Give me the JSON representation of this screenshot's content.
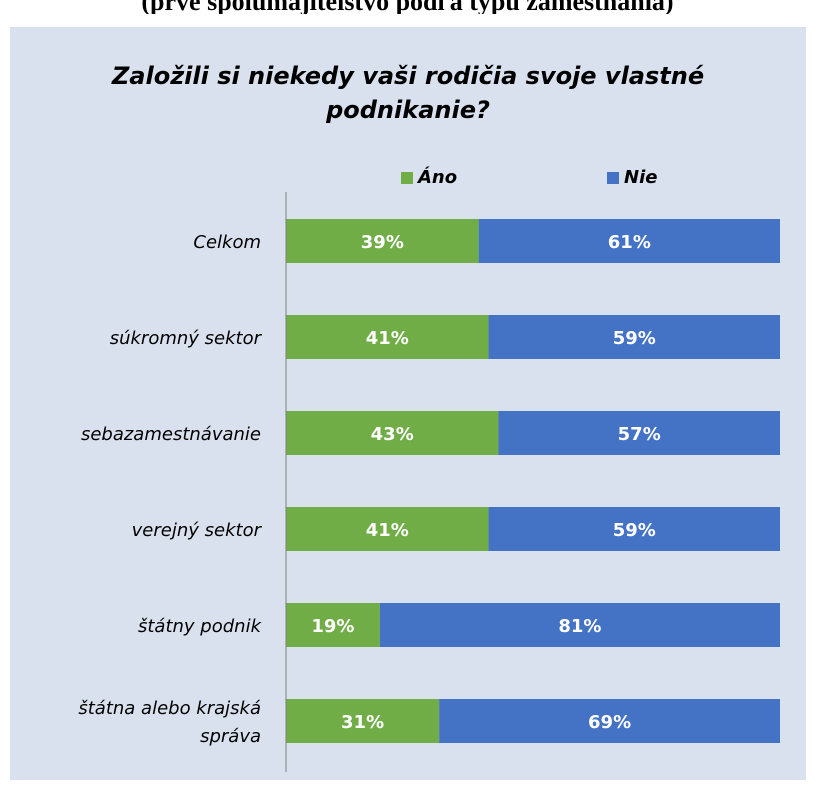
{
  "page": {
    "top_caption": "(prvé spolumajitelstvo podľa typu zamestnania)"
  },
  "colors": {
    "yes": "#70ad47",
    "no": "#4472c4",
    "panel": "#d9e1ee",
    "axis": "#7f7f7f"
  },
  "chart_data": {
    "type": "bar",
    "orientation": "horizontal",
    "stacked": "percent",
    "title_lines": [
      "Založili si niekedy vaši rodičia svoje vlastné",
      "podnikanie?"
    ],
    "categories": [
      "Celkom",
      "súkromný sektor",
      "sebazamestnávanie",
      "verejný sektor",
      "štátny  podnik",
      "štátna alebo krajská správa"
    ],
    "category_lines": [
      [
        "Celkom"
      ],
      [
        "súkromný sektor"
      ],
      [
        "sebazamestnávanie"
      ],
      [
        "verejný sektor"
      ],
      [
        "štátny  podnik"
      ],
      [
        "štátna alebo krajská",
        "správa"
      ]
    ],
    "series": [
      {
        "name": "Áno",
        "color": "#70ad47",
        "values": [
          39,
          41,
          43,
          41,
          19,
          31
        ],
        "labels": [
          "39%",
          "41%",
          "43%",
          "41%",
          "19%",
          "31%"
        ]
      },
      {
        "name": "Nie",
        "color": "#4472c4",
        "values": [
          61,
          59,
          57,
          59,
          81,
          69
        ],
        "labels": [
          "61%",
          "59%",
          "57%",
          "59%",
          "81%",
          "69%"
        ]
      }
    ],
    "xlim": [
      0,
      100
    ],
    "legend_position": "top",
    "grid": false
  }
}
